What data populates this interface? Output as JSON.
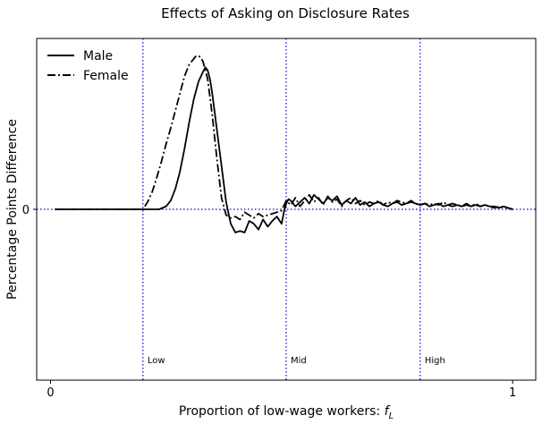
{
  "chart_data": {
    "type": "line",
    "title": "Effects of Asking on Disclosure Rates",
    "xlabel": "Proportion of low-wage workers: ",
    "xlabel_math": "f",
    "xlabel_sub": "L",
    "ylabel": "Percentage Points Difference",
    "xlim": [
      -0.03,
      1.05
    ],
    "ylim": [
      -1.18,
      1.18
    ],
    "x_ticks": [
      {
        "value": 0,
        "label": "0"
      },
      {
        "value": 1,
        "label": "1"
      }
    ],
    "y_ticks": [
      {
        "value": 0,
        "label": "0"
      }
    ],
    "legend": {
      "position": "top-left"
    },
    "zero_line": {
      "y": 0,
      "style": "dotted",
      "color": "#0000cc"
    },
    "vlines": [
      {
        "x": 0.2,
        "label": "Low",
        "color": "#0000cc"
      },
      {
        "x": 0.51,
        "label": "Mid",
        "color": "#0000cc"
      },
      {
        "x": 0.8,
        "label": "High",
        "color": "#0000cc"
      }
    ],
    "series": [
      {
        "name": "Male",
        "style": "solid",
        "color": "#000000",
        "x": [
          0.01,
          0.05,
          0.1,
          0.15,
          0.2,
          0.22,
          0.235,
          0.25,
          0.26,
          0.27,
          0.28,
          0.29,
          0.3,
          0.31,
          0.32,
          0.33,
          0.335,
          0.34,
          0.345,
          0.35,
          0.36,
          0.37,
          0.38,
          0.39,
          0.4,
          0.41,
          0.42,
          0.43,
          0.44,
          0.45,
          0.46,
          0.47,
          0.48,
          0.49,
          0.5,
          0.505,
          0.51,
          0.515,
          0.52,
          0.53,
          0.54,
          0.55,
          0.56,
          0.57,
          0.58,
          0.59,
          0.6,
          0.61,
          0.62,
          0.63,
          0.64,
          0.65,
          0.66,
          0.67,
          0.68,
          0.69,
          0.7,
          0.71,
          0.72,
          0.73,
          0.74,
          0.75,
          0.76,
          0.77,
          0.78,
          0.79,
          0.8,
          0.81,
          0.82,
          0.83,
          0.84,
          0.85,
          0.86,
          0.87,
          0.88,
          0.89,
          0.9,
          0.91,
          0.92,
          0.93,
          0.94,
          0.95,
          0.96,
          0.97,
          0.98,
          0.99,
          1.0
        ],
        "values": [
          0,
          0,
          0,
          0,
          0,
          0,
          0,
          0.02,
          0.06,
          0.14,
          0.26,
          0.42,
          0.6,
          0.76,
          0.88,
          0.95,
          0.98,
          0.96,
          0.9,
          0.8,
          0.55,
          0.3,
          0.05,
          -0.1,
          -0.16,
          -0.15,
          -0.16,
          -0.08,
          -0.1,
          -0.14,
          -0.07,
          -0.12,
          -0.08,
          -0.05,
          -0.1,
          -0.02,
          0.04,
          0.07,
          0.06,
          0.02,
          0.05,
          0.08,
          0.04,
          0.1,
          0.07,
          0.04,
          0.08,
          0.06,
          0.09,
          0.03,
          0.06,
          0.04,
          0.08,
          0.03,
          0.05,
          0.02,
          0.04,
          0.05,
          0.03,
          0.02,
          0.04,
          0.05,
          0.03,
          0.04,
          0.05,
          0.04,
          0.03,
          0.04,
          0.02,
          0.03,
          0.04,
          0.02,
          0.03,
          0.02,
          0.03,
          0.02,
          0.04,
          0.02,
          0.03,
          0.02,
          0.03,
          0.02,
          0.02,
          0.01,
          0.02,
          0.01,
          0.0
        ]
      },
      {
        "name": "Female",
        "style": "dashdot",
        "color": "#000000",
        "x": [
          0.01,
          0.05,
          0.1,
          0.15,
          0.2,
          0.21,
          0.22,
          0.23,
          0.24,
          0.25,
          0.26,
          0.27,
          0.28,
          0.29,
          0.3,
          0.31,
          0.315,
          0.32,
          0.325,
          0.33,
          0.34,
          0.35,
          0.36,
          0.37,
          0.38,
          0.39,
          0.4,
          0.41,
          0.42,
          0.43,
          0.44,
          0.45,
          0.46,
          0.47,
          0.48,
          0.49,
          0.5,
          0.51,
          0.52,
          0.53,
          0.54,
          0.55,
          0.56,
          0.57,
          0.58,
          0.59,
          0.6,
          0.61,
          0.62,
          0.63,
          0.64,
          0.65,
          0.66,
          0.67,
          0.68,
          0.69,
          0.7,
          0.71,
          0.72,
          0.73,
          0.74,
          0.75,
          0.76,
          0.77,
          0.78,
          0.79,
          0.8,
          0.81,
          0.82,
          0.83,
          0.84,
          0.85,
          0.86,
          0.87,
          0.88,
          0.89,
          0.9,
          0.91,
          0.92,
          0.93,
          0.94,
          0.95,
          0.96,
          0.97,
          0.98,
          0.99,
          1.0
        ],
        "values": [
          0,
          0,
          0,
          0,
          0,
          0.05,
          0.12,
          0.22,
          0.33,
          0.45,
          0.56,
          0.68,
          0.8,
          0.92,
          1.0,
          1.04,
          1.06,
          1.06,
          1.05,
          1.02,
          0.9,
          0.65,
          0.35,
          0.08,
          -0.04,
          -0.06,
          -0.05,
          -0.07,
          -0.02,
          -0.04,
          -0.06,
          -0.03,
          -0.05,
          -0.04,
          -0.03,
          -0.02,
          -0.01,
          0.06,
          0.03,
          0.08,
          0.02,
          0.06,
          0.1,
          0.05,
          0.08,
          0.03,
          0.09,
          0.05,
          0.07,
          0.02,
          0.06,
          0.08,
          0.04,
          0.06,
          0.03,
          0.05,
          0.04,
          0.06,
          0.03,
          0.05,
          0.04,
          0.06,
          0.05,
          0.04,
          0.06,
          0.04,
          0.03,
          0.04,
          0.03,
          0.04,
          0.03,
          0.05,
          0.03,
          0.04,
          0.03,
          0.02,
          0.03,
          0.02,
          0.04,
          0.02,
          0.03,
          0.02,
          0.01,
          0.02,
          0.01,
          0.01,
          0.0
        ]
      }
    ]
  }
}
